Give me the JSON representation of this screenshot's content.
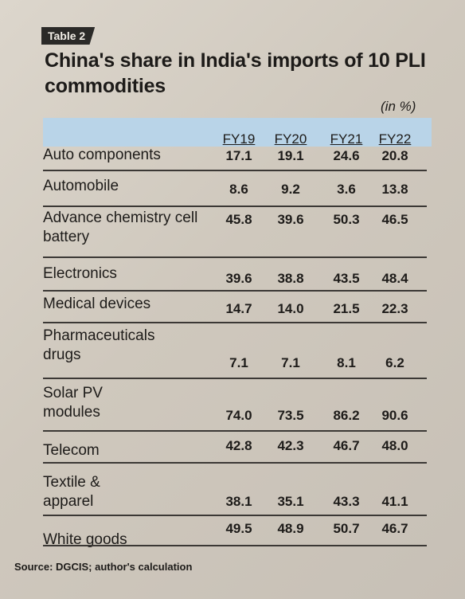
{
  "table": {
    "tag": "Table 2",
    "title": "China's share in India's imports of 10 PLI commodities",
    "unit": "(in %)",
    "columns": [
      "FY19",
      "FY20",
      "FY21",
      "FY22"
    ],
    "rows": [
      {
        "label": "Auto components",
        "values": [
          "17.1",
          "19.1",
          "24.6",
          "20.8"
        ]
      },
      {
        "label": "Automobile",
        "values": [
          "8.6",
          "9.2",
          "3.6",
          "13.8"
        ]
      },
      {
        "label": "Advance chemistry cell battery",
        "values": [
          "45.8",
          "39.6",
          "50.3",
          "46.5"
        ]
      },
      {
        "label": "Electronics",
        "values": [
          "39.6",
          "38.8",
          "43.5",
          "48.4"
        ]
      },
      {
        "label": "Medical devices",
        "values": [
          "14.7",
          "14.0",
          "21.5",
          "22.3"
        ]
      },
      {
        "label": "Pharmaceuticals drugs",
        "values": [
          "7.1",
          "7.1",
          "8.1",
          "6.2"
        ]
      },
      {
        "label": "Solar PV modules",
        "values": [
          "74.0",
          "73.5",
          "86.2",
          "90.6"
        ]
      },
      {
        "label": "Telecom",
        "values": [
          "42.8",
          "42.3",
          "46.7",
          "48.0"
        ]
      },
      {
        "label": "Textile & apparel",
        "values": [
          "38.1",
          "35.1",
          "43.3",
          "41.1"
        ]
      },
      {
        "label": "White goods",
        "values": [
          "49.5",
          "48.9",
          "50.7",
          "46.7"
        ]
      }
    ],
    "source": "Source: DGCIS; author's calculation"
  }
}
